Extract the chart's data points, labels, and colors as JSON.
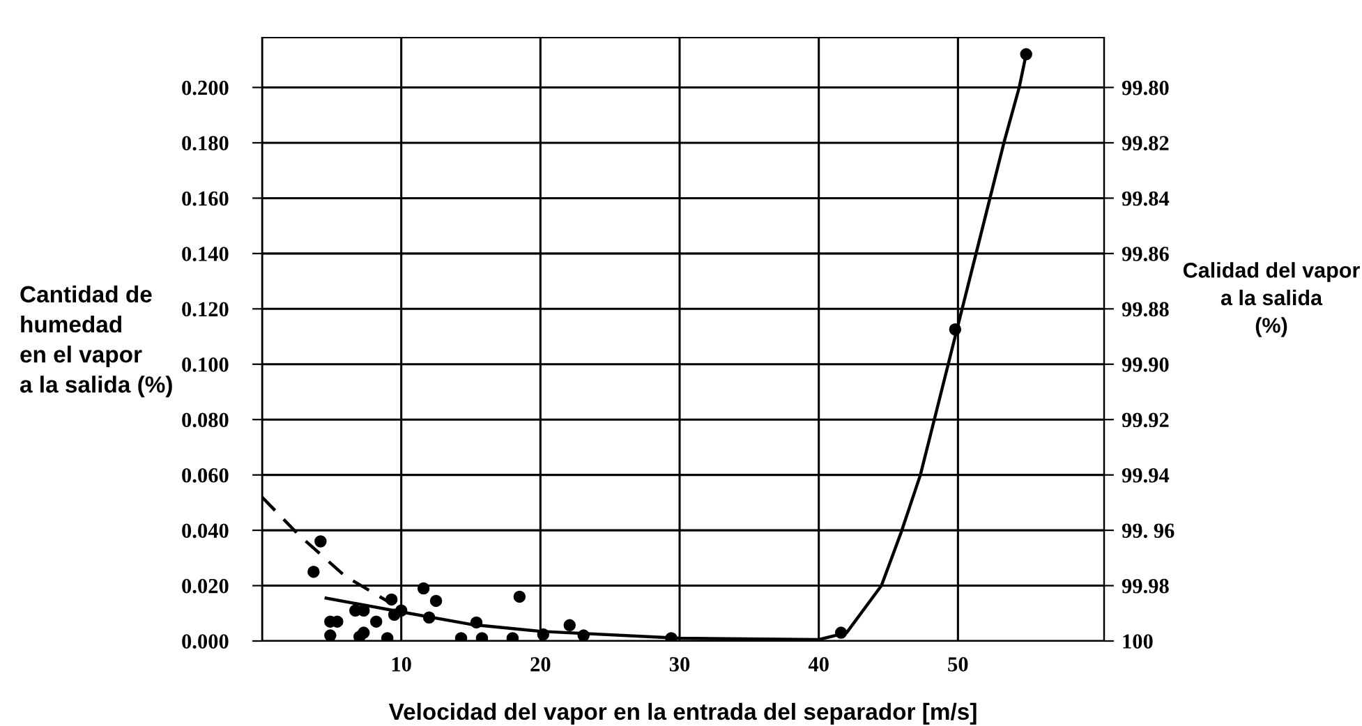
{
  "chart_data": {
    "type": "scatter",
    "xlabel": "Velocidad del vapor en la entrada del separador [m/s]",
    "ylabel": "Cantidad de\nhumedad\nen el vapor\na la salida (%)",
    "y2label": "Calidad del vapor\na la salida\n(%)",
    "xlim": [
      0,
      60.5
    ],
    "xticks": [
      {
        "value": 0,
        "label": null
      },
      10,
      20,
      30,
      40,
      50
    ],
    "ylim": [
      0,
      0.218
    ],
    "yticks": [
      {
        "value": 0,
        "label": "0.000"
      },
      {
        "value": 0.02,
        "label": "0.020"
      },
      {
        "value": 0.04,
        "label": "0.040"
      },
      {
        "value": 0.06,
        "label": "0.060"
      },
      {
        "value": 0.08,
        "label": "0.080"
      },
      {
        "value": 0.1,
        "label": "0.100"
      },
      {
        "value": 0.12,
        "label": "0.120"
      },
      {
        "value": 0.14,
        "label": "0.140"
      },
      {
        "value": 0.16,
        "label": "0.160"
      },
      {
        "value": 0.18,
        "label": "0.180"
      },
      {
        "value": 0.2,
        "label": "0.200"
      }
    ],
    "y2lim": [
      100,
      99.782
    ],
    "y2ticks": [
      100,
      {
        "value": 99.98,
        "label": "99.98"
      },
      {
        "value": 99.96,
        "label": "99. 96"
      },
      {
        "value": 99.94,
        "label": "99.94"
      },
      {
        "value": 99.92,
        "label": "99.92"
      },
      {
        "value": 99.9,
        "label": "99.90"
      },
      {
        "value": 99.88,
        "label": "99.88"
      },
      {
        "value": 99.86,
        "label": "99.86"
      },
      {
        "value": 99.84,
        "label": "99.84"
      },
      {
        "value": 99.82,
        "label": "99.82"
      },
      {
        "value": 99.8,
        "label": "99.80"
      }
    ],
    "grid": true,
    "legend": false,
    "series": [
      {
        "color": "#000000",
        "marker": "circle",
        "x": [
          4.2,
          3.7,
          4.9,
          5.4,
          4.9,
          6.7,
          7.3,
          7.3,
          7.0,
          8.2,
          9.0,
          9.3,
          9.5,
          10.0,
          11.6,
          12.5,
          12.0,
          14.3,
          15.4,
          15.8,
          18.0,
          18.5,
          20.2,
          22.1,
          23.1,
          29.4,
          41.6,
          49.8,
          54.9
        ],
        "values": [
          0.036,
          0.025,
          0.007,
          0.007,
          0.002,
          0.011,
          0.011,
          0.003,
          0.0015,
          0.007,
          0.001,
          0.015,
          0.0095,
          0.011,
          0.019,
          0.0145,
          0.0085,
          0.001,
          0.0067,
          0.001,
          0.001,
          0.016,
          0.0024,
          0.0057,
          0.002,
          0.001,
          0.003,
          0.1126,
          0.212
        ]
      },
      {
        "type": "line",
        "color": "#000000",
        "line_style": "solid",
        "x": [
          4.6,
          10,
          15,
          20,
          30,
          40,
          42,
          44.5,
          45.9,
          47.3,
          48.3,
          49.3,
          50.3,
          51.3,
          52.3,
          53.3,
          54.4,
          54.9
        ],
        "values": [
          0.0155,
          0.0105,
          0.006,
          0.0035,
          0.001,
          0.0005,
          0.003,
          0.02,
          0.039,
          0.06,
          0.08,
          0.1,
          0.12,
          0.14,
          0.16,
          0.18,
          0.2,
          0.212
        ]
      },
      {
        "type": "line",
        "color": "#000000",
        "line_style": "dashed",
        "x": [
          0,
          2.6,
          5.95,
          9.3
        ],
        "values": [
          0.052,
          0.0385,
          0.0235,
          0.0135
        ]
      }
    ]
  }
}
